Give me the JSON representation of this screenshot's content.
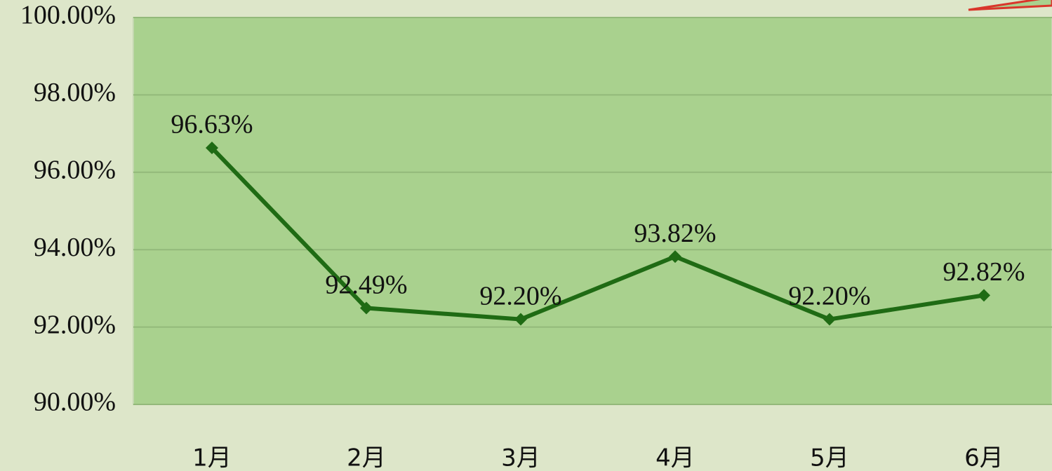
{
  "chart_data": {
    "type": "line",
    "categories": [
      "1月",
      "2月",
      "3月",
      "4月",
      "5月",
      "6月"
    ],
    "series": [
      {
        "color": "#1f6b14",
        "values": [
          96.63,
          92.49,
          92.2,
          93.82,
          92.2,
          92.82
        ],
        "value_labels": [
          "96.63%",
          "92.49%",
          "92.20%",
          "93.82%",
          "92.20%",
          "92.82%"
        ]
      }
    ],
    "ylim": [
      90,
      100
    ],
    "yticks": [
      {
        "value": 90,
        "label": "90.00%"
      },
      {
        "value": 92,
        "label": "92.00%"
      },
      {
        "value": 94,
        "label": "94.00%"
      },
      {
        "value": 96,
        "label": "96.00%"
      },
      {
        "value": 98,
        "label": "98.00%"
      },
      {
        "value": 100,
        "label": "100.00%"
      }
    ],
    "grid": true
  }
}
